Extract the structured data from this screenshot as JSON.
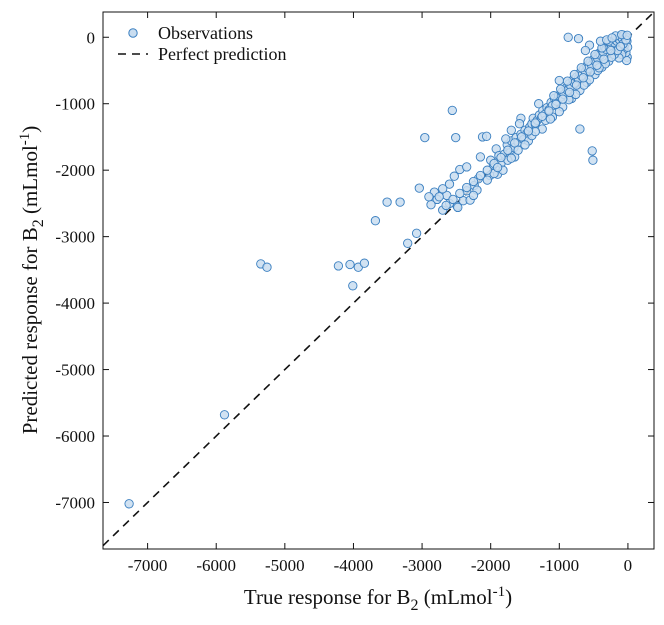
{
  "chart_data": {
    "type": "scatter",
    "title": "",
    "xlabel": {
      "prefix": "True response for B",
      "sub": "2",
      "unit": " (mLmol",
      "sup": "-1",
      "close": ")"
    },
    "ylabel": {
      "prefix": "Predicted response for B",
      "sub": "2",
      "unit": " (mLmol",
      "sup": "-1",
      "close": ")"
    },
    "xlim": [
      -7650,
      380
    ],
    "ylim": [
      -7700,
      380
    ],
    "x_ticks": [
      -7000,
      -6000,
      -5000,
      -4000,
      -3000,
      -2000,
      -1000,
      0
    ],
    "y_ticks": [
      0,
      -1000,
      -2000,
      -3000,
      -4000,
      -5000,
      -6000,
      -7000
    ],
    "grid": false,
    "legend": {
      "position": "top-left",
      "entries": [
        {
          "label": "Observations",
          "marker": "circle"
        },
        {
          "label": "Perfect prediction",
          "marker": "dashed-line"
        }
      ]
    },
    "series": [
      {
        "name": "Observations",
        "color_fill": "#c9ddf0",
        "color_edge": "#3a7fc0",
        "points": [
          [
            -7270,
            -7020
          ],
          [
            -5880,
            -5680
          ],
          [
            -5350,
            -3410
          ],
          [
            -5260,
            -3460
          ],
          [
            -4220,
            -3440
          ],
          [
            -4050,
            -3420
          ],
          [
            -4010,
            -3740
          ],
          [
            -3930,
            -3460
          ],
          [
            -3840,
            -3400
          ],
          [
            -3680,
            -2760
          ],
          [
            -3510,
            -2480
          ],
          [
            -3320,
            -2480
          ],
          [
            -3210,
            -3100
          ],
          [
            -3080,
            -2950
          ],
          [
            -3040,
            -2270
          ],
          [
            -2960,
            -1510
          ],
          [
            -2560,
            -1100
          ],
          [
            -2510,
            -1510
          ],
          [
            -2490,
            -2540
          ],
          [
            -2640,
            -2380
          ],
          [
            -2600,
            -2210
          ],
          [
            -2700,
            -2280
          ],
          [
            -2780,
            -2440
          ],
          [
            -2820,
            -2330
          ],
          [
            -2870,
            -2520
          ],
          [
            -2900,
            -2400
          ],
          [
            -2400,
            -2460
          ],
          [
            -2350,
            -2310
          ],
          [
            -2450,
            -1990
          ],
          [
            -2530,
            -2090
          ],
          [
            -2240,
            -2230
          ],
          [
            -2180,
            -2130
          ],
          [
            -2120,
            -1500
          ],
          [
            -2060,
            -1490
          ],
          [
            -2010,
            -2080
          ],
          [
            -1960,
            -1920
          ],
          [
            -1920,
            -1680
          ],
          [
            -1880,
            -1780
          ],
          [
            -1850,
            -1900
          ],
          [
            -1800,
            -1760
          ],
          [
            -1760,
            -1620
          ],
          [
            -1720,
            -1740
          ],
          [
            -1700,
            -1560
          ],
          [
            -1660,
            -1660
          ],
          [
            -1630,
            -1510
          ],
          [
            -1600,
            -1580
          ],
          [
            -1560,
            -1460
          ],
          [
            -1520,
            -1540
          ],
          [
            -1500,
            -1400
          ],
          [
            -1470,
            -1440
          ],
          [
            -1430,
            -1350
          ],
          [
            -1400,
            -1300
          ],
          [
            -1380,
            -1220
          ],
          [
            -1350,
            -1310
          ],
          [
            -1320,
            -1250
          ],
          [
            -1290,
            -1170
          ],
          [
            -1260,
            -1210
          ],
          [
            -1240,
            -1100
          ],
          [
            -1210,
            -1160
          ],
          [
            -1180,
            -1060
          ],
          [
            -1150,
            -1090
          ],
          [
            -1120,
            -980
          ],
          [
            -1100,
            -1030
          ],
          [
            -1070,
            -920
          ],
          [
            -1040,
            -960
          ],
          [
            -1010,
            -880
          ],
          [
            -980,
            -900
          ],
          [
            -960,
            -820
          ],
          [
            -930,
            -860
          ],
          [
            -900,
            -760
          ],
          [
            -880,
            -800
          ],
          [
            -860,
            -700
          ],
          [
            -830,
            -740
          ],
          [
            -800,
            -640
          ],
          [
            -780,
            -690
          ],
          [
            -750,
            -600
          ],
          [
            -720,
            -620
          ],
          [
            -700,
            -540
          ],
          [
            -680,
            -580
          ],
          [
            -650,
            -480
          ],
          [
            -620,
            -520
          ],
          [
            -600,
            -430
          ],
          [
            -580,
            -470
          ],
          [
            -550,
            -380
          ],
          [
            -530,
            -420
          ],
          [
            -500,
            -330
          ],
          [
            -480,
            -360
          ],
          [
            -460,
            -280
          ],
          [
            -440,
            -320
          ],
          [
            -420,
            -240
          ],
          [
            -400,
            -270
          ],
          [
            -380,
            -190
          ],
          [
            -360,
            -220
          ],
          [
            -340,
            -150
          ],
          [
            -320,
            -180
          ],
          [
            -300,
            -110
          ],
          [
            -280,
            -140
          ],
          [
            -260,
            -90
          ],
          [
            -240,
            -120
          ],
          [
            -220,
            -60
          ],
          [
            -200,
            -80
          ],
          [
            -180,
            -40
          ],
          [
            -160,
            -60
          ],
          [
            -140,
            -20
          ],
          [
            -120,
            -40
          ],
          [
            -100,
            10
          ],
          [
            -80,
            -20
          ],
          [
            -60,
            30
          ],
          [
            -40,
            -10
          ],
          [
            -20,
            0
          ],
          [
            -10,
            -300
          ],
          [
            -20,
            -350
          ],
          [
            -30,
            -230
          ],
          [
            -60,
            -180
          ],
          [
            -90,
            -260
          ],
          [
            -130,
            -310
          ],
          [
            -170,
            -210
          ],
          [
            -50,
            -120
          ],
          [
            -15,
            -60
          ],
          [
            -5,
            -150
          ],
          [
            -870,
            0
          ],
          [
            -720,
            -20
          ],
          [
            -520,
            -1710
          ],
          [
            -510,
            -1850
          ],
          [
            -700,
            -1380
          ],
          [
            -1000,
            -650
          ],
          [
            -1300,
            -1000
          ],
          [
            -1560,
            -1220
          ],
          [
            -1580,
            -1300
          ],
          [
            -1780,
            -1530
          ],
          [
            -1700,
            -1400
          ],
          [
            -2350,
            -1950
          ],
          [
            -2150,
            -1800
          ],
          [
            -1900,
            -2060
          ],
          [
            -1820,
            -2000
          ],
          [
            -2200,
            -2300
          ],
          [
            -2300,
            -2450
          ],
          [
            -2700,
            -2600
          ],
          [
            -2600,
            -2500
          ],
          [
            -2000,
            -1850
          ],
          [
            -1650,
            -1800
          ],
          [
            -1450,
            -1560
          ],
          [
            -1250,
            -1380
          ],
          [
            -1100,
            -1200
          ],
          [
            -950,
            -1050
          ],
          [
            -820,
            -920
          ],
          [
            -700,
            -800
          ],
          [
            -600,
            -680
          ],
          [
            -480,
            -560
          ],
          [
            -380,
            -450
          ],
          [
            -280,
            -360
          ],
          [
            -200,
            -260
          ],
          [
            -1200,
            -1250
          ],
          [
            -1500,
            -1620
          ],
          [
            -1750,
            -1850
          ],
          [
            -2050,
            -2150
          ],
          [
            -1400,
            -1480
          ],
          [
            -1000,
            -1120
          ],
          [
            -760,
            -860
          ],
          [
            -560,
            -640
          ],
          [
            -440,
            -500
          ],
          [
            -330,
            -400
          ],
          [
            -1130,
            -1230
          ],
          [
            -860,
            -940
          ],
          [
            -640,
            -720
          ],
          [
            -420,
            -460
          ],
          [
            -240,
            -300
          ],
          [
            -2480,
            -2560
          ],
          [
            -2250,
            -2380
          ],
          [
            -1950,
            -2050
          ],
          [
            -1700,
            -1820
          ],
          [
            -1350,
            -1420
          ],
          [
            -150,
            -200
          ],
          [
            -70,
            -100
          ],
          [
            -110,
            -140
          ],
          [
            -30,
            -40
          ],
          [
            -250,
            -200
          ],
          [
            -350,
            -330
          ],
          [
            -450,
            -420
          ],
          [
            -550,
            -520
          ],
          [
            -650,
            -610
          ],
          [
            -750,
            -720
          ],
          [
            -850,
            -830
          ],
          [
            -950,
            -930
          ],
          [
            -1050,
            -1010
          ],
          [
            -1150,
            -1110
          ],
          [
            -1250,
            -1190
          ],
          [
            -1350,
            -1290
          ],
          [
            -1450,
            -1410
          ],
          [
            -1550,
            -1500
          ],
          [
            -1650,
            -1590
          ],
          [
            -1750,
            -1700
          ],
          [
            -1850,
            -1810
          ],
          [
            -1950,
            -1900
          ],
          [
            -2050,
            -2000
          ],
          [
            -2150,
            -2080
          ],
          [
            -2250,
            -2170
          ],
          [
            -2350,
            -2260
          ],
          [
            -2450,
            -2350
          ],
          [
            -2550,
            -2440
          ],
          [
            -2650,
            -2530
          ],
          [
            -2750,
            -2400
          ],
          [
            -1600,
            -1700
          ],
          [
            -1900,
            -1960
          ],
          [
            -1080,
            -880
          ],
          [
            -980,
            -780
          ],
          [
            -880,
            -660
          ],
          [
            -780,
            -560
          ],
          [
            -680,
            -460
          ],
          [
            -580,
            -360
          ],
          [
            -480,
            -260
          ],
          [
            -380,
            -160
          ],
          [
            -280,
            -60
          ],
          [
            -180,
            20
          ],
          [
            -90,
            40
          ],
          [
            -10,
            30
          ],
          [
            -400,
            -60
          ],
          [
            -560,
            -120
          ],
          [
            -620,
            -200
          ],
          [
            -310,
            -40
          ],
          [
            -230,
            -10
          ]
        ]
      },
      {
        "name": "Perfect prediction",
        "style": "dashed",
        "color": "#111111",
        "points": [
          [
            -7650,
            -7650
          ],
          [
            380,
            380
          ]
        ]
      }
    ]
  }
}
